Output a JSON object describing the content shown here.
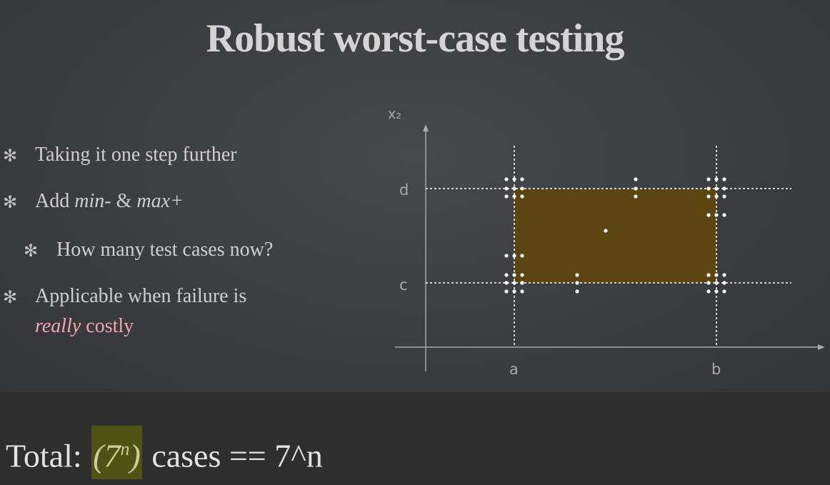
{
  "title": "Robust worst-case testing",
  "bullets": [
    {
      "level": 1,
      "text": "Taking it one step further"
    },
    {
      "level": 1,
      "parts": [
        "Add ",
        "min-",
        " & ",
        "max+"
      ]
    },
    {
      "level": 2,
      "text": "How many test cases now?"
    },
    {
      "level": 1,
      "text": "Applicable when failure is",
      "line2_em": "really",
      "line2_rest": " costly"
    }
  ],
  "bullet_icon": "asterisk-icon",
  "diagram": {
    "x_axis_label_1": "a",
    "x_axis_label_2": "b",
    "y_axis_label": "x₂",
    "y_label_1": "c",
    "y_label_2": "d",
    "region_color": "#5c4510",
    "point_color": "#ffffff"
  },
  "footer": {
    "prefix": "Total: ",
    "highlight_base": "(7",
    "highlight_exp": "n",
    "highlight_close": ")",
    "suffix": " cases == 7^n"
  }
}
